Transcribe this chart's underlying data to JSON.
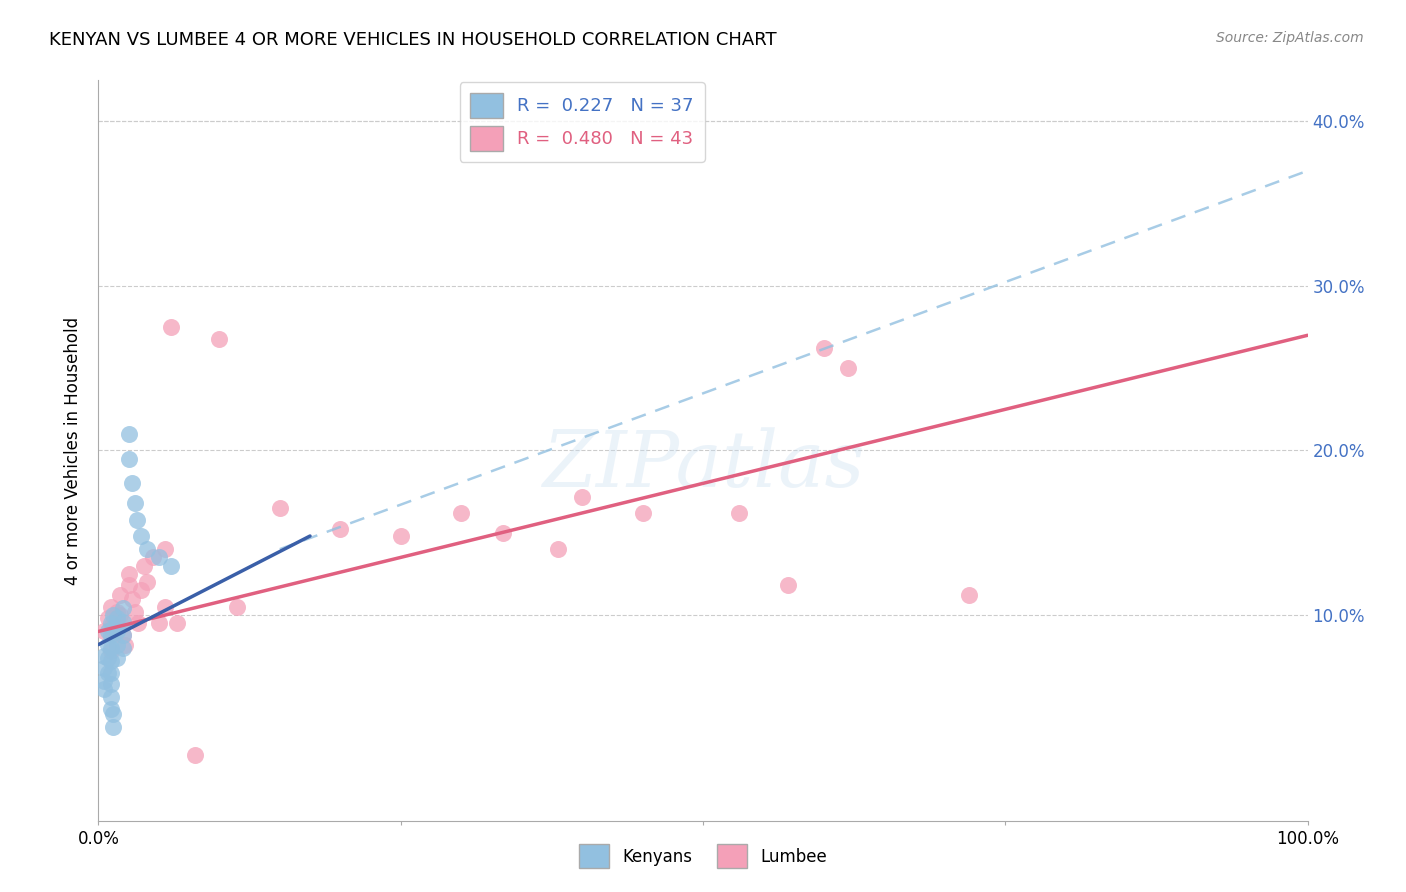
{
  "title": "KENYAN VS LUMBEE 4 OR MORE VEHICLES IN HOUSEHOLD CORRELATION CHART",
  "source": "Source: ZipAtlas.com",
  "ylabel": "4 or more Vehicles in Household",
  "xlim": [
    0.0,
    1.0
  ],
  "ylim": [
    -0.025,
    0.425
  ],
  "yticks": [
    0.0,
    0.1,
    0.2,
    0.3,
    0.4
  ],
  "xticks": [
    0.0,
    0.25,
    0.5,
    0.75,
    1.0
  ],
  "xtick_labels": [
    "0.0%",
    "",
    "",
    "",
    "100.0%"
  ],
  "ytick_labels": [
    "",
    "10.0%",
    "20.0%",
    "30.0%",
    "40.0%"
  ],
  "legend_label_kenyan": "R =  0.227   N = 37",
  "legend_label_lumbee": "R =  0.480   N = 43",
  "kenyan_color": "#92c0e0",
  "lumbee_color": "#f4a0b8",
  "kenyan_line_color": "#3a5fa8",
  "lumbee_line_color": "#e06080",
  "kenyan_dashed_color": "#92c0e0",
  "watermark": "ZIPatlas",
  "kenyan_points": [
    [
      0.005,
      0.075
    ],
    [
      0.005,
      0.068
    ],
    [
      0.005,
      0.06
    ],
    [
      0.005,
      0.055
    ],
    [
      0.008,
      0.09
    ],
    [
      0.008,
      0.082
    ],
    [
      0.008,
      0.074
    ],
    [
      0.008,
      0.065
    ],
    [
      0.01,
      0.095
    ],
    [
      0.01,
      0.088
    ],
    [
      0.01,
      0.08
    ],
    [
      0.01,
      0.072
    ],
    [
      0.01,
      0.065
    ],
    [
      0.01,
      0.058
    ],
    [
      0.01,
      0.05
    ],
    [
      0.01,
      0.043
    ],
    [
      0.012,
      0.1
    ],
    [
      0.012,
      0.092
    ],
    [
      0.012,
      0.04
    ],
    [
      0.012,
      0.032
    ],
    [
      0.015,
      0.098
    ],
    [
      0.015,
      0.09
    ],
    [
      0.015,
      0.082
    ],
    [
      0.015,
      0.074
    ],
    [
      0.02,
      0.104
    ],
    [
      0.02,
      0.096
    ],
    [
      0.02,
      0.088
    ],
    [
      0.02,
      0.08
    ],
    [
      0.025,
      0.21
    ],
    [
      0.025,
      0.195
    ],
    [
      0.028,
      0.18
    ],
    [
      0.03,
      0.168
    ],
    [
      0.032,
      0.158
    ],
    [
      0.035,
      0.148
    ],
    [
      0.04,
      0.14
    ],
    [
      0.05,
      0.135
    ],
    [
      0.06,
      0.13
    ]
  ],
  "lumbee_points": [
    [
      0.005,
      0.09
    ],
    [
      0.008,
      0.098
    ],
    [
      0.01,
      0.105
    ],
    [
      0.01,
      0.078
    ],
    [
      0.012,
      0.095
    ],
    [
      0.012,
      0.088
    ],
    [
      0.015,
      0.102
    ],
    [
      0.015,
      0.095
    ],
    [
      0.018,
      0.112
    ],
    [
      0.018,
      0.1
    ],
    [
      0.02,
      0.095
    ],
    [
      0.02,
      0.088
    ],
    [
      0.022,
      0.082
    ],
    [
      0.025,
      0.125
    ],
    [
      0.025,
      0.118
    ],
    [
      0.028,
      0.11
    ],
    [
      0.03,
      0.102
    ],
    [
      0.033,
      0.095
    ],
    [
      0.035,
      0.115
    ],
    [
      0.038,
      0.13
    ],
    [
      0.04,
      0.12
    ],
    [
      0.045,
      0.135
    ],
    [
      0.05,
      0.095
    ],
    [
      0.055,
      0.14
    ],
    [
      0.055,
      0.105
    ],
    [
      0.06,
      0.275
    ],
    [
      0.065,
      0.095
    ],
    [
      0.1,
      0.268
    ],
    [
      0.115,
      0.105
    ],
    [
      0.15,
      0.165
    ],
    [
      0.2,
      0.152
    ],
    [
      0.25,
      0.148
    ],
    [
      0.3,
      0.162
    ],
    [
      0.335,
      0.15
    ],
    [
      0.38,
      0.14
    ],
    [
      0.4,
      0.172
    ],
    [
      0.45,
      0.162
    ],
    [
      0.53,
      0.162
    ],
    [
      0.57,
      0.118
    ],
    [
      0.6,
      0.262
    ],
    [
      0.62,
      0.25
    ],
    [
      0.72,
      0.112
    ],
    [
      0.08,
      0.015
    ]
  ],
  "kenyan_trendline_solid": {
    "x": [
      0.0,
      0.175
    ],
    "y": [
      0.082,
      0.148
    ]
  },
  "kenyan_trendline_dashed": {
    "x": [
      0.15,
      1.0
    ],
    "y": [
      0.14,
      0.37
    ]
  },
  "lumbee_trendline": {
    "x": [
      0.0,
      1.0
    ],
    "y": [
      0.09,
      0.27
    ]
  }
}
